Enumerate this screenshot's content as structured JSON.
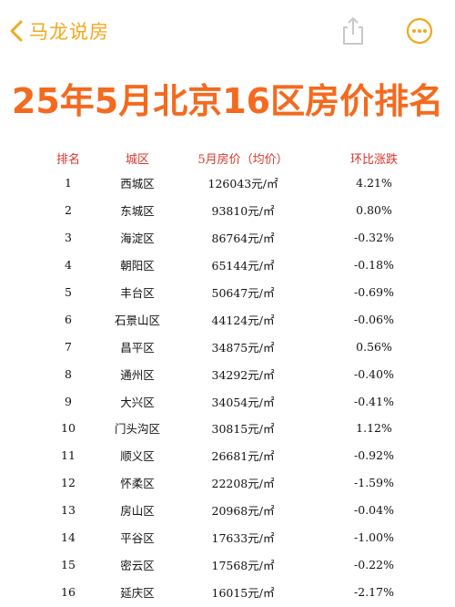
{
  "header": {
    "back_label": "马龙说房"
  },
  "title": "25年5月北京16区房价排名",
  "table": {
    "columns": [
      "排名",
      "城区",
      "5月房价（均价）",
      "环比涨跌"
    ],
    "rows": [
      [
        "1",
        "西城区",
        "126043元/㎡",
        "4.21%"
      ],
      [
        "2",
        "东城区",
        "93810元/㎡",
        "0.80%"
      ],
      [
        "3",
        "海淀区",
        "86764元/㎡",
        "-0.32%"
      ],
      [
        "4",
        "朝阳区",
        "65144元/㎡",
        "-0.18%"
      ],
      [
        "5",
        "丰台区",
        "50647元/㎡",
        "-0.69%"
      ],
      [
        "6",
        "石景山区",
        "44124元/㎡",
        "-0.06%"
      ],
      [
        "7",
        "昌平区",
        "34875元/㎡",
        "0.56%"
      ],
      [
        "8",
        "通州区",
        "34292元/㎡",
        "-0.40%"
      ],
      [
        "9",
        "大兴区",
        "34054元/㎡",
        "-0.41%"
      ],
      [
        "10",
        "门头沟区",
        "30815元/㎡",
        "1.12%"
      ],
      [
        "11",
        "顺义区",
        "26681元/㎡",
        "-0.92%"
      ],
      [
        "12",
        "怀柔区",
        "22208元/㎡",
        "-1.59%"
      ],
      [
        "13",
        "房山区",
        "20968元/㎡",
        "-0.04%"
      ],
      [
        "14",
        "平谷区",
        "17633元/㎡",
        "-1.00%"
      ],
      [
        "15",
        "密云区",
        "17568元/㎡",
        "-0.22%"
      ],
      [
        "16",
        "延庆区",
        "16015元/㎡",
        "-2.17%"
      ]
    ]
  },
  "colors": {
    "accent": "#f2a81d",
    "title": "#f46a1e",
    "header_text": "#d9362c"
  },
  "icons": {
    "back": "chevron-left-icon",
    "share": "share-icon",
    "more": "more-icon"
  }
}
